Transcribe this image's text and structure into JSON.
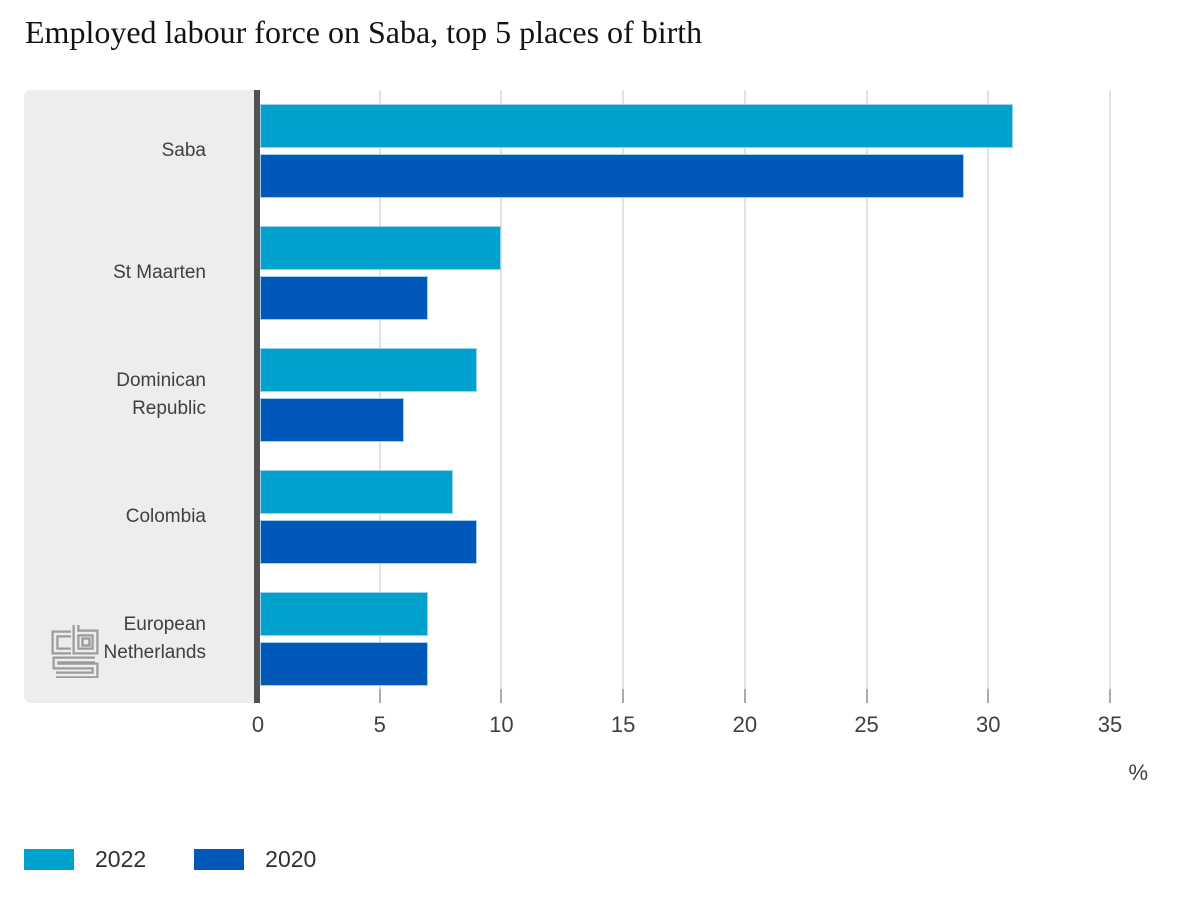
{
  "title": "Employed labour force on Saba, top 5 places of birth",
  "chart_data": {
    "type": "bar",
    "orientation": "horizontal",
    "categories": [
      "Saba",
      "St Maarten",
      "Dominican Republic",
      "Colombia",
      "European Netherlands"
    ],
    "series": [
      {
        "name": "2022",
        "color": "#00a1cd",
        "values": [
          31,
          10,
          9,
          8,
          7
        ]
      },
      {
        "name": "2020",
        "color": "#0058b8",
        "values": [
          29,
          7,
          6,
          9,
          7
        ]
      }
    ],
    "xlabel": "%",
    "x_ticks": [
      0,
      5,
      10,
      15,
      20,
      25,
      30,
      35
    ],
    "xlim": [
      0,
      35
    ],
    "grid": true,
    "legend_position": "bottom-left"
  },
  "colors": {
    "accent_light": "#00a1cd",
    "accent_dark": "#0058b8",
    "panel_bg": "#ededed",
    "axis_line": "#515154",
    "gridline": "#e3e3e3",
    "text": "#3f3f3f",
    "logo_grey": "#9b9b9b"
  },
  "logo": {
    "name": "cbs-logo"
  }
}
